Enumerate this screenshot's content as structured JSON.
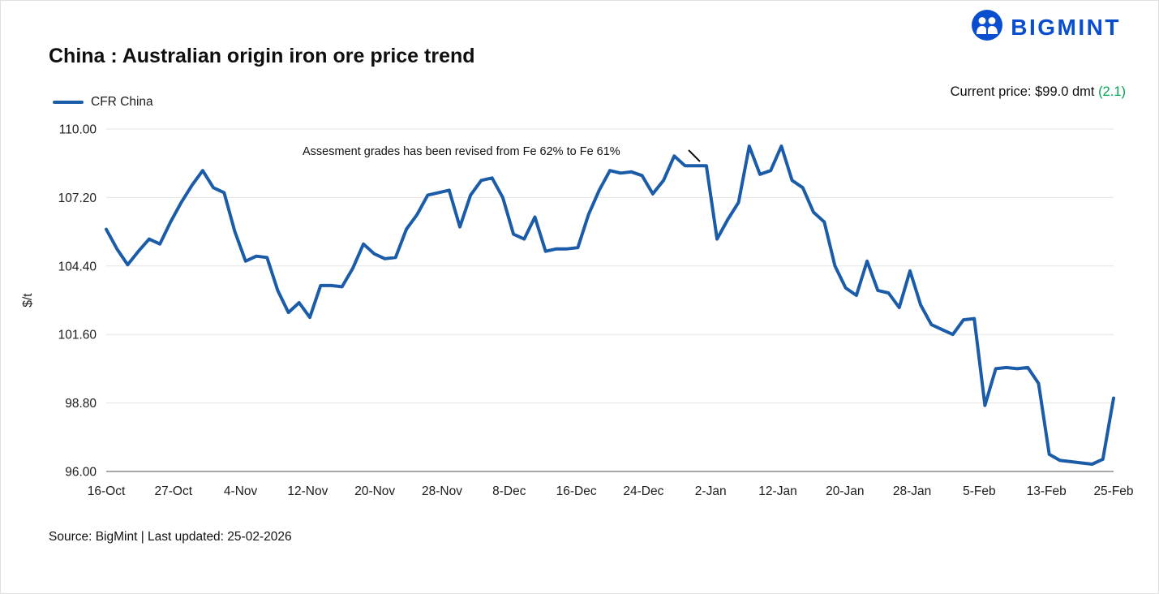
{
  "logo": {
    "text": "BIGMINT",
    "brand_color": "#0a4ed0",
    "icon": "bigmint-people-circle-icon"
  },
  "header": {
    "title": "China : Australian origin iron ore price trend"
  },
  "legend": {
    "label": "CFR China",
    "swatch_color": "#1b5ca8"
  },
  "current_price": {
    "label": "Current price: $99.0 dmt ",
    "change": "(2.1)",
    "change_color": "#00a651"
  },
  "source": "Source: BigMint | Last updated: 25-02-2026",
  "chart_data": {
    "type": "line",
    "title": "China : Australian origin iron ore price trend",
    "xlabel": "",
    "ylabel": "$/t",
    "ylim": [
      96,
      110
    ],
    "grid": true,
    "legend_position": "top-left",
    "y_ticks": [
      96.0,
      98.8,
      101.6,
      104.4,
      107.2,
      110.0
    ],
    "y_tick_labels": [
      "96.00",
      "98.80",
      "101.60",
      "104.40",
      "107.20",
      "110.00"
    ],
    "x_tick_labels": [
      "16-Oct",
      "27-Oct",
      "4-Nov",
      "12-Nov",
      "20-Nov",
      "28-Nov",
      "8-Dec",
      "16-Dec",
      "24-Dec",
      "2-Jan",
      "12-Jan",
      "20-Jan",
      "28-Jan",
      "5-Feb",
      "13-Feb",
      "25-Feb"
    ],
    "annotation": {
      "text": "Assesment grades has been revised from Fe 62% to Fe 61%"
    },
    "series": [
      {
        "name": "CFR China",
        "color": "#1b5ca8",
        "values": [
          105.9,
          105.1,
          104.45,
          105.0,
          105.5,
          105.3,
          106.2,
          107.0,
          107.7,
          108.3,
          107.6,
          107.4,
          105.8,
          104.6,
          104.8,
          104.75,
          103.4,
          102.5,
          102.9,
          102.3,
          103.6,
          103.6,
          103.55,
          104.3,
          105.3,
          104.9,
          104.7,
          104.75,
          105.9,
          106.5,
          107.3,
          107.4,
          107.5,
          106.0,
          107.3,
          107.9,
          108.0,
          107.2,
          105.7,
          105.5,
          106.4,
          105.0,
          105.1,
          105.1,
          105.15,
          106.5,
          107.5,
          108.3,
          108.2,
          108.25,
          108.1,
          107.35,
          107.9,
          108.9,
          108.5,
          108.5,
          108.5,
          105.5,
          106.3,
          107.0,
          109.3,
          108.15,
          108.3,
          109.3,
          107.9,
          107.6,
          106.6,
          106.2,
          104.4,
          103.5,
          103.2,
          104.6,
          103.4,
          103.3,
          102.7,
          104.2,
          102.8,
          102.0,
          101.8,
          101.6,
          102.2,
          102.25,
          98.7,
          100.2,
          100.25,
          100.2,
          100.25,
          99.6,
          96.7,
          96.45,
          96.4,
          96.35,
          96.3,
          96.5,
          99.0
        ]
      }
    ]
  }
}
